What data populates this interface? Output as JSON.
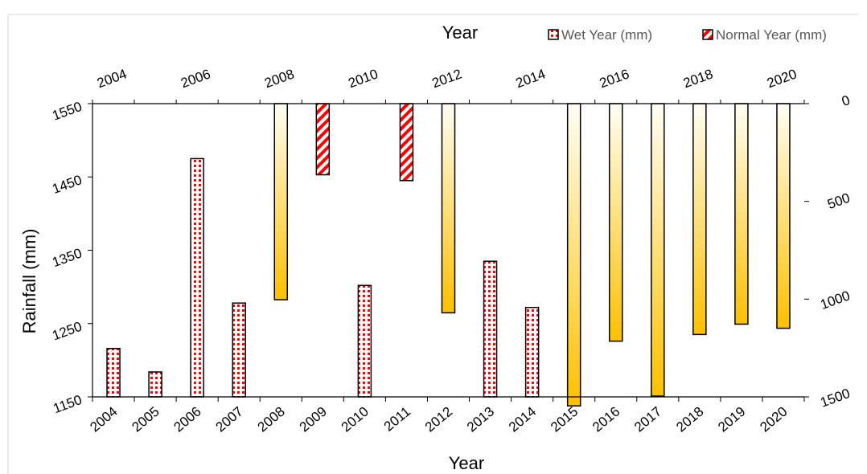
{
  "chart_data": {
    "type": "bar",
    "categories": [
      "2004",
      "2005",
      "2006",
      "2007",
      "2008",
      "2009",
      "2010",
      "2011",
      "2012",
      "2013",
      "2014",
      "2015",
      "2016",
      "2017",
      "2018",
      "2019",
      "2020"
    ],
    "xlabel_bottom": "Year",
    "xlabel_top": "Year",
    "ylabel": "Rainfall (mm)",
    "top_axis_ticks": [
      "2004",
      "2006",
      "2008",
      "2010",
      "2012",
      "2014",
      "2016",
      "2018",
      "2020"
    ],
    "left_axis": {
      "ylim": [
        1150,
        1550
      ],
      "ticks": [
        "1150",
        "1250",
        "1350",
        "1450",
        "1550"
      ]
    },
    "right_axis": {
      "ylim": [
        0,
        1500
      ],
      "reversed": true,
      "ticks": [
        "0",
        "500",
        "1000",
        "1500"
      ]
    },
    "series": [
      {
        "name": "Wet Year  (mm)",
        "axis": "left",
        "values": [
          1216,
          1184,
          1475,
          1278,
          null,
          1453,
          1302,
          1445,
          null,
          1335,
          1272,
          null,
          null,
          null,
          null,
          null,
          null
        ]
      },
      {
        "name": "Normal Year (mm)",
        "axis": "right",
        "values": [
          null,
          null,
          null,
          null,
          1003,
          null,
          null,
          null,
          1070,
          null,
          null,
          1546,
          1215,
          1496,
          1181,
          1128,
          1149
        ]
      }
    ],
    "legend_position": "top-right",
    "colors": {
      "wet_pattern": "#ff0000",
      "normal_gradient_top": "#fffef5",
      "normal_gradient_bottom": "#ffc000"
    }
  }
}
